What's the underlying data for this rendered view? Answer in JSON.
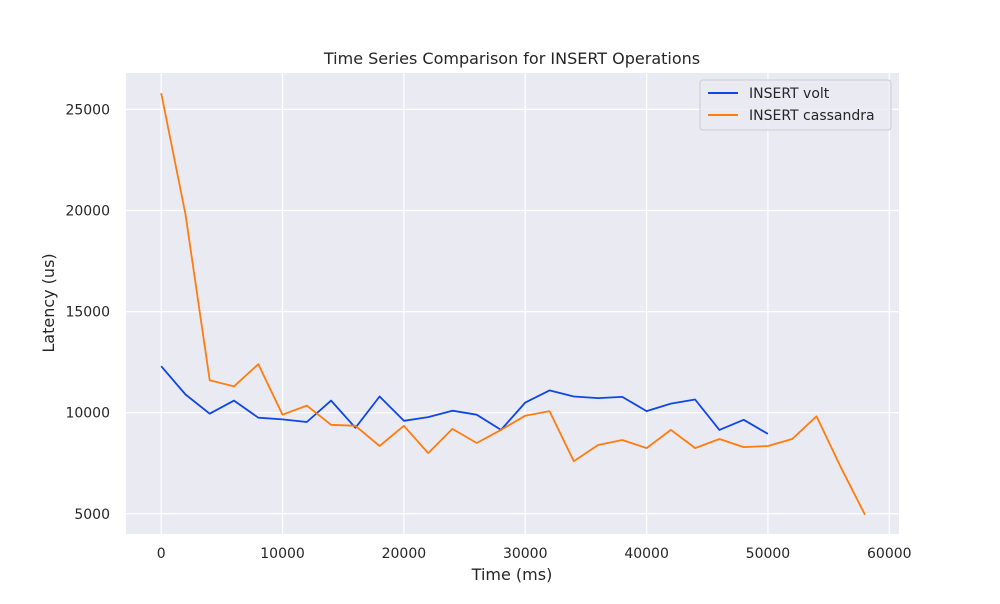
{
  "chart_data": {
    "type": "line",
    "title": "Time Series Comparison for INSERT Operations",
    "xlabel": "Time (ms)",
    "ylabel": "Latency (us)",
    "xlim": [
      -2900,
      60800
    ],
    "ylim": [
      4000,
      26800
    ],
    "xticks": [
      0,
      10000,
      20000,
      30000,
      40000,
      50000,
      60000
    ],
    "yticks": [
      5000,
      10000,
      15000,
      20000,
      25000
    ],
    "grid": true,
    "legend_position": "top-right",
    "background": "#eaeaf2",
    "series": [
      {
        "name": "INSERT volt",
        "color": "#0d47e8",
        "x": [
          0,
          2000,
          4000,
          6000,
          8000,
          10000,
          12000,
          14000,
          16000,
          18000,
          20000,
          22000,
          24000,
          26000,
          28000,
          30000,
          32000,
          34000,
          36000,
          38000,
          40000,
          42000,
          44000,
          46000,
          48000,
          50000
        ],
        "y": [
          12300,
          10900,
          9950,
          10600,
          9750,
          9670,
          9540,
          10600,
          9250,
          10800,
          9600,
          9780,
          10100,
          9900,
          9150,
          10500,
          11100,
          10800,
          10720,
          10780,
          10080,
          10450,
          10650,
          9150,
          9650,
          8950
        ]
      },
      {
        "name": "INSERT cassandra",
        "color": "#ff7c0f",
        "x": [
          0,
          2000,
          4000,
          6000,
          8000,
          10000,
          12000,
          14000,
          16000,
          18000,
          20000,
          22000,
          24000,
          26000,
          28000,
          30000,
          32000,
          34000,
          36000,
          38000,
          40000,
          42000,
          44000,
          46000,
          48000,
          50000,
          52000,
          54000,
          56000,
          58000
        ],
        "y": [
          25800,
          19800,
          11600,
          11300,
          12400,
          9900,
          10350,
          9400,
          9350,
          8350,
          9350,
          8000,
          9200,
          8500,
          9150,
          9850,
          10080,
          7600,
          8400,
          8650,
          8250,
          9150,
          8250,
          8700,
          8300,
          8350,
          8700,
          9820,
          7300,
          4950
        ]
      }
    ]
  }
}
